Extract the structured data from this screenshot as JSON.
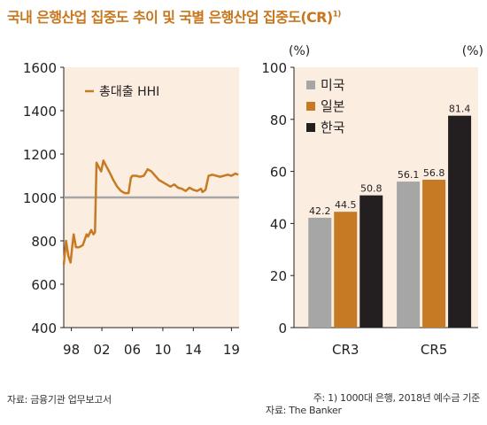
{
  "title": "국내 은행산업 집중도 추이 및 국별 은행산업 집중도(CR)",
  "title_note": "1)",
  "colors": {
    "title": "#c8761b",
    "hhi_line": "#c67a24",
    "reference_line": "#a6a6a6",
    "usa": "#a6a6a6",
    "japan": "#c67a24",
    "korea": "#231f20",
    "panel_bg": "#fbeee0"
  },
  "chart_data": [
    {
      "type": "line",
      "title": "",
      "xlabel": "",
      "ylabel": "",
      "x_tick_labels": [
        "98",
        "02",
        "06",
        "10",
        "14",
        "19"
      ],
      "y_ticks": [
        400,
        600,
        800,
        1000,
        1200,
        1400,
        1600
      ],
      "ylim": [
        400,
        1600
      ],
      "xlim": [
        1997.0,
        2020.0
      ],
      "grid": false,
      "legend": "top-left",
      "reference_line": 1000,
      "series": [
        {
          "name": "총대출 HHI",
          "x": [
            1997.0,
            1997.3,
            1997.6,
            1997.9,
            1998.1,
            1998.3,
            1998.6,
            1999.0,
            1999.5,
            2000.0,
            2000.2,
            2000.6,
            2000.9,
            2001.1,
            2001.3,
            2001.6,
            2001.9,
            2002.2,
            2002.5,
            2002.8,
            2003.1,
            2003.5,
            2004.0,
            2004.5,
            2005.0,
            2005.5,
            2005.8,
            2006.0,
            2006.5,
            2007.0,
            2007.5,
            2008.0,
            2008.5,
            2009.0,
            2009.5,
            2010.0,
            2010.5,
            2011.0,
            2011.5,
            2012.0,
            2012.5,
            2013.0,
            2013.5,
            2014.0,
            2014.5,
            2015.0,
            2015.2,
            2015.6,
            2016.0,
            2016.5,
            2017.0,
            2017.5,
            2018.0,
            2018.5,
            2019.0,
            2019.5,
            2019.9
          ],
          "y": [
            690,
            800,
            730,
            700,
            770,
            830,
            770,
            770,
            780,
            830,
            820,
            850,
            830,
            840,
            1160,
            1140,
            1120,
            1170,
            1150,
            1130,
            1110,
            1080,
            1050,
            1030,
            1020,
            1020,
            1090,
            1100,
            1100,
            1095,
            1100,
            1130,
            1120,
            1100,
            1080,
            1070,
            1060,
            1050,
            1060,
            1045,
            1040,
            1030,
            1045,
            1035,
            1030,
            1040,
            1025,
            1035,
            1100,
            1105,
            1100,
            1095,
            1100,
            1105,
            1100,
            1110,
            1105
          ]
        }
      ]
    },
    {
      "type": "bar",
      "title": "",
      "xlabel": "",
      "ylabel": "(%)",
      "ylabel_right": "(%)",
      "categories": [
        "CR3",
        "CR5"
      ],
      "y_ticks": [
        0,
        20,
        40,
        60,
        80,
        100
      ],
      "ylim": [
        0,
        100
      ],
      "grid": false,
      "legend": "top-left",
      "series": [
        {
          "name": "미국",
          "values": [
            42.2,
            56.1
          ],
          "labels": [
            "42.2",
            "56.1"
          ]
        },
        {
          "name": "일본",
          "values": [
            44.5,
            56.8
          ],
          "labels": [
            "44.5",
            "56.8"
          ]
        },
        {
          "name": "한국",
          "values": [
            50.8,
            81.4
          ],
          "labels": [
            "50.8",
            "81.4"
          ]
        }
      ]
    }
  ],
  "source_left": "자료: 금융기관 업무보고서",
  "note_right": "주: 1) 1000대 은행, 2018년 예수금 기준",
  "source_right": "자료: The Banker"
}
